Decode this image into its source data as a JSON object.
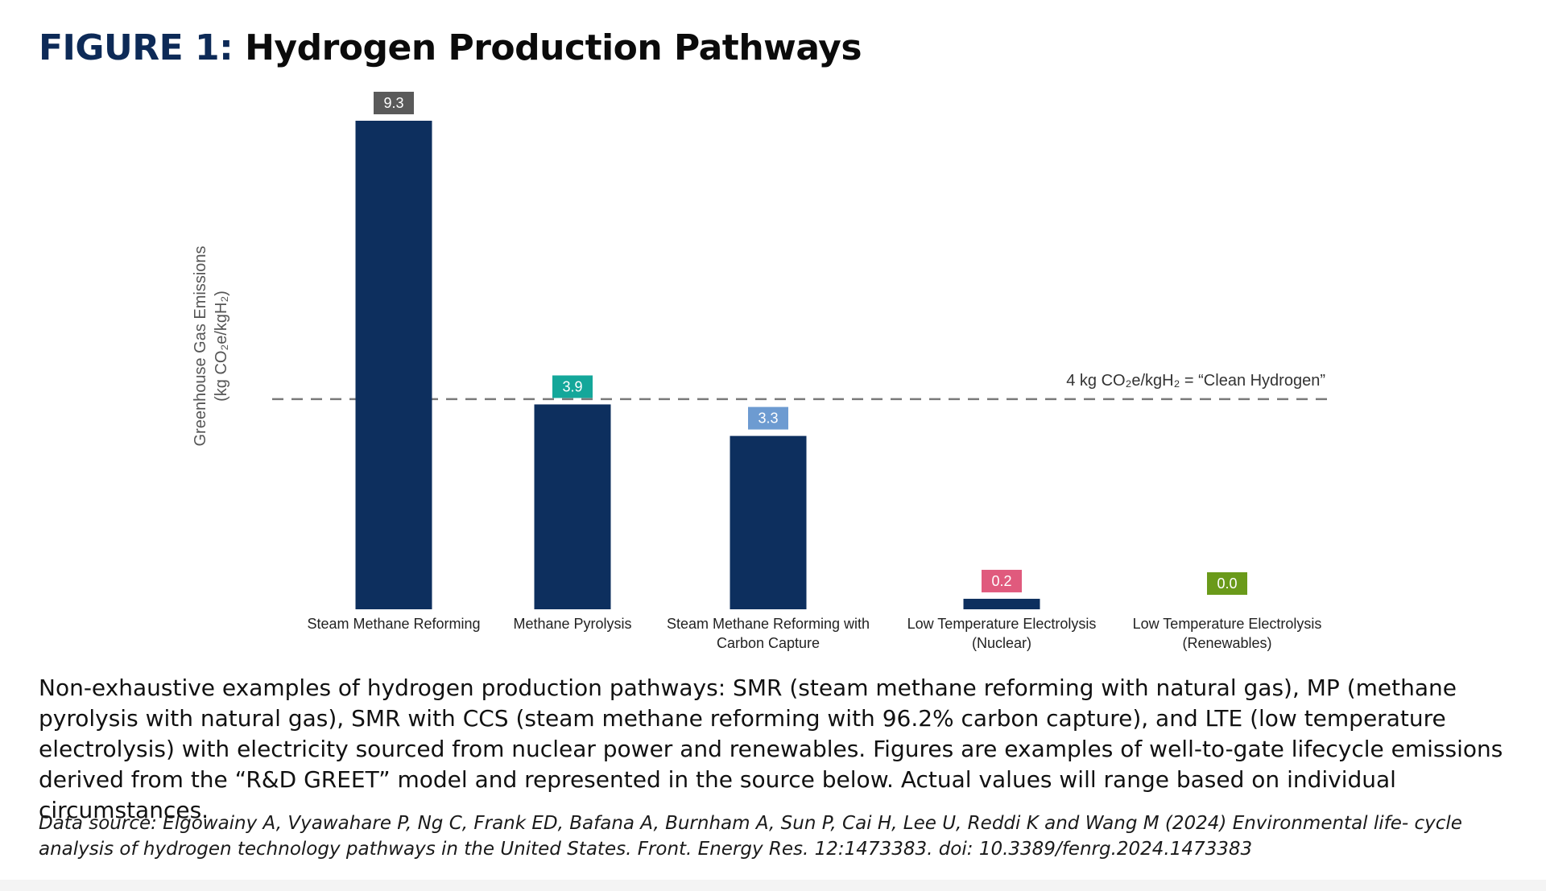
{
  "figure": {
    "label": "FIGURE 1:",
    "title": "Hydrogen Production Pathways"
  },
  "chart_data": {
    "type": "bar",
    "categories": [
      [
        "Steam Methane Reforming"
      ],
      [
        "Methane Pyrolysis"
      ],
      [
        "Steam Methane Reforming with",
        "Carbon Capture"
      ],
      [
        "Low Temperature Electrolysis",
        "(Nuclear)"
      ],
      [
        "Low Temperature Electrolysis",
        "(Renewables)"
      ]
    ],
    "values": [
      9.3,
      3.9,
      3.3,
      0.2,
      0.0
    ],
    "value_labels": [
      "9.3",
      "3.9",
      "3.3",
      "0.2",
      "0.0"
    ],
    "label_colors": [
      "#5a5a5a",
      "#14a79a",
      "#6d9bd1",
      "#e05a7d",
      "#6a9a1a"
    ],
    "bar_color": "#0d2f5e",
    "ylabel_line1": "Greenhouse Gas Emissions",
    "ylabel_line2": "(kg CO₂e/kgH₂)",
    "ylim": [
      0,
      9.3
    ],
    "grid": false,
    "reference_line": {
      "value": 4,
      "label": "4 kg CO₂e/kgH₂ = “Clean Hydrogen”",
      "color": "#7a7a7a",
      "style": "dashed"
    }
  },
  "caption": "Non-exhaustive examples of hydrogen production pathways: SMR (steam methane reforming with natural gas), MP (methane pyrolysis with natural gas), SMR with CCS (steam methane reforming with 96.2% carbon capture), and LTE (low temperature electrolysis) with electricity sourced from nuclear power and renewables. Figures are examples of well-to-gate lifecycle emissions derived from the “R&D GREET” model and represented in the source below. Actual values will range based on individual circumstances.",
  "source": "Data source: Elgowainy A, Vyawahare P, Ng C, Frank ED, Bafana A, Burnham A, Sun P, Cai H, Lee U, Reddi K and Wang M (2024) Environmental life- cycle analysis of hydrogen technology pathways in the United States. Front. Energy Res. 12:1473383. doi: 10.3389/fenrg.2024.1473383"
}
